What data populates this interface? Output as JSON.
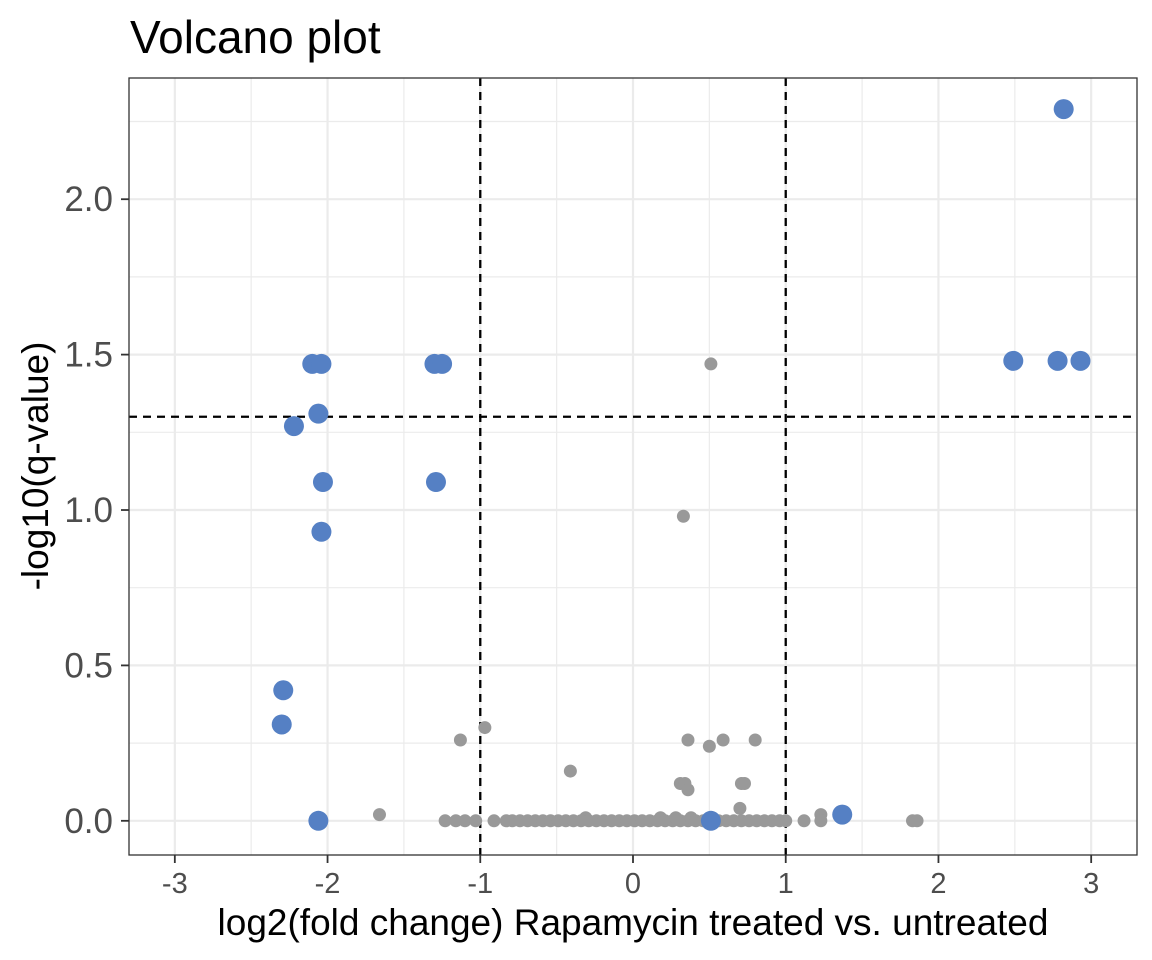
{
  "chart_data": {
    "type": "scatter",
    "title": "Volcano plot",
    "xlabel": "log2(fold change) Rapamycin treated vs. untreated",
    "ylabel": "-log10(q-value)",
    "xlim": [
      -3.3,
      3.3
    ],
    "ylim": [
      -0.11,
      2.39
    ],
    "xticks": [
      -3,
      -2,
      -1,
      0,
      1,
      2,
      3
    ],
    "xtick_labels": [
      "-3",
      "-2",
      "-1",
      "0",
      "1",
      "2",
      "3"
    ],
    "yticks": [
      0.0,
      0.5,
      1.0,
      1.5,
      2.0
    ],
    "ytick_labels": [
      "0.0",
      "0.5",
      "1.0",
      "1.5",
      "2.0"
    ],
    "grid": true,
    "thresholds": {
      "vertical": [
        -1,
        1
      ],
      "horizontal": [
        1.3
      ]
    },
    "colors": {
      "significant": "#5580c4",
      "not_significant": "#999999",
      "threshold_line": "#000000"
    },
    "series": [
      {
        "group": "significant",
        "points": [
          [
            2.82,
            2.29
          ],
          [
            -2.1,
            1.47
          ],
          [
            -2.04,
            1.47
          ],
          [
            -1.3,
            1.47
          ],
          [
            -1.25,
            1.47
          ],
          [
            2.49,
            1.48
          ],
          [
            2.78,
            1.48
          ],
          [
            2.93,
            1.48
          ],
          [
            -2.06,
            1.31
          ],
          [
            -2.22,
            1.27
          ],
          [
            -2.03,
            1.09
          ],
          [
            -1.29,
            1.09
          ],
          [
            -2.04,
            0.93
          ],
          [
            -2.29,
            0.42
          ],
          [
            -2.3,
            0.31
          ],
          [
            -2.06,
            0.0
          ],
          [
            1.37,
            0.02
          ],
          [
            0.51,
            0.0
          ]
        ]
      },
      {
        "group": "not_significant",
        "points": [
          [
            0.51,
            1.47
          ],
          [
            0.33,
            0.98
          ],
          [
            -0.97,
            0.3
          ],
          [
            -1.13,
            0.26
          ],
          [
            0.36,
            0.26
          ],
          [
            0.59,
            0.26
          ],
          [
            0.8,
            0.26
          ],
          [
            0.5,
            0.24
          ],
          [
            -0.41,
            0.16
          ],
          [
            0.31,
            0.12
          ],
          [
            0.34,
            0.12
          ],
          [
            0.71,
            0.12
          ],
          [
            0.73,
            0.12
          ],
          [
            0.36,
            0.1
          ],
          [
            0.7,
            0.04
          ],
          [
            -1.66,
            0.02
          ],
          [
            1.23,
            0.02
          ],
          [
            1.23,
            0.0
          ],
          [
            1.12,
            0.0
          ],
          [
            1.83,
            0.0
          ],
          [
            1.86,
            0.0
          ],
          [
            -1.23,
            0.0
          ],
          [
            -1.16,
            0.0
          ],
          [
            -1.1,
            0.0
          ],
          [
            -1.03,
            0.0
          ],
          [
            -0.91,
            0.0
          ],
          [
            -0.83,
            0.0
          ],
          [
            -0.79,
            0.0
          ],
          [
            -0.74,
            0.0
          ],
          [
            -0.69,
            0.0
          ],
          [
            -0.64,
            0.0
          ],
          [
            -0.59,
            0.0
          ],
          [
            -0.54,
            0.0
          ],
          [
            -0.49,
            0.0
          ],
          [
            -0.44,
            0.0
          ],
          [
            -0.39,
            0.0
          ],
          [
            -0.34,
            0.0
          ],
          [
            -0.31,
            0.01
          ],
          [
            -0.29,
            0.0
          ],
          [
            -0.24,
            0.0
          ],
          [
            -0.19,
            0.0
          ],
          [
            -0.14,
            0.0
          ],
          [
            -0.09,
            0.0
          ],
          [
            -0.04,
            0.0
          ],
          [
            0.01,
            0.0
          ],
          [
            0.06,
            0.0
          ],
          [
            0.11,
            0.0
          ],
          [
            0.16,
            0.0
          ],
          [
            0.18,
            0.01
          ],
          [
            0.21,
            0.0
          ],
          [
            0.26,
            0.0
          ],
          [
            0.28,
            0.01
          ],
          [
            0.31,
            0.0
          ],
          [
            0.36,
            0.0
          ],
          [
            0.38,
            0.01
          ],
          [
            0.41,
            0.0
          ],
          [
            0.46,
            0.0
          ],
          [
            0.56,
            0.0
          ],
          [
            0.61,
            0.0
          ],
          [
            0.66,
            0.0
          ],
          [
            0.71,
            0.0
          ],
          [
            0.76,
            0.0
          ],
          [
            0.81,
            0.0
          ],
          [
            0.86,
            0.0
          ],
          [
            0.91,
            0.0
          ],
          [
            0.96,
            0.0
          ],
          [
            1.0,
            0.0
          ]
        ]
      }
    ]
  }
}
